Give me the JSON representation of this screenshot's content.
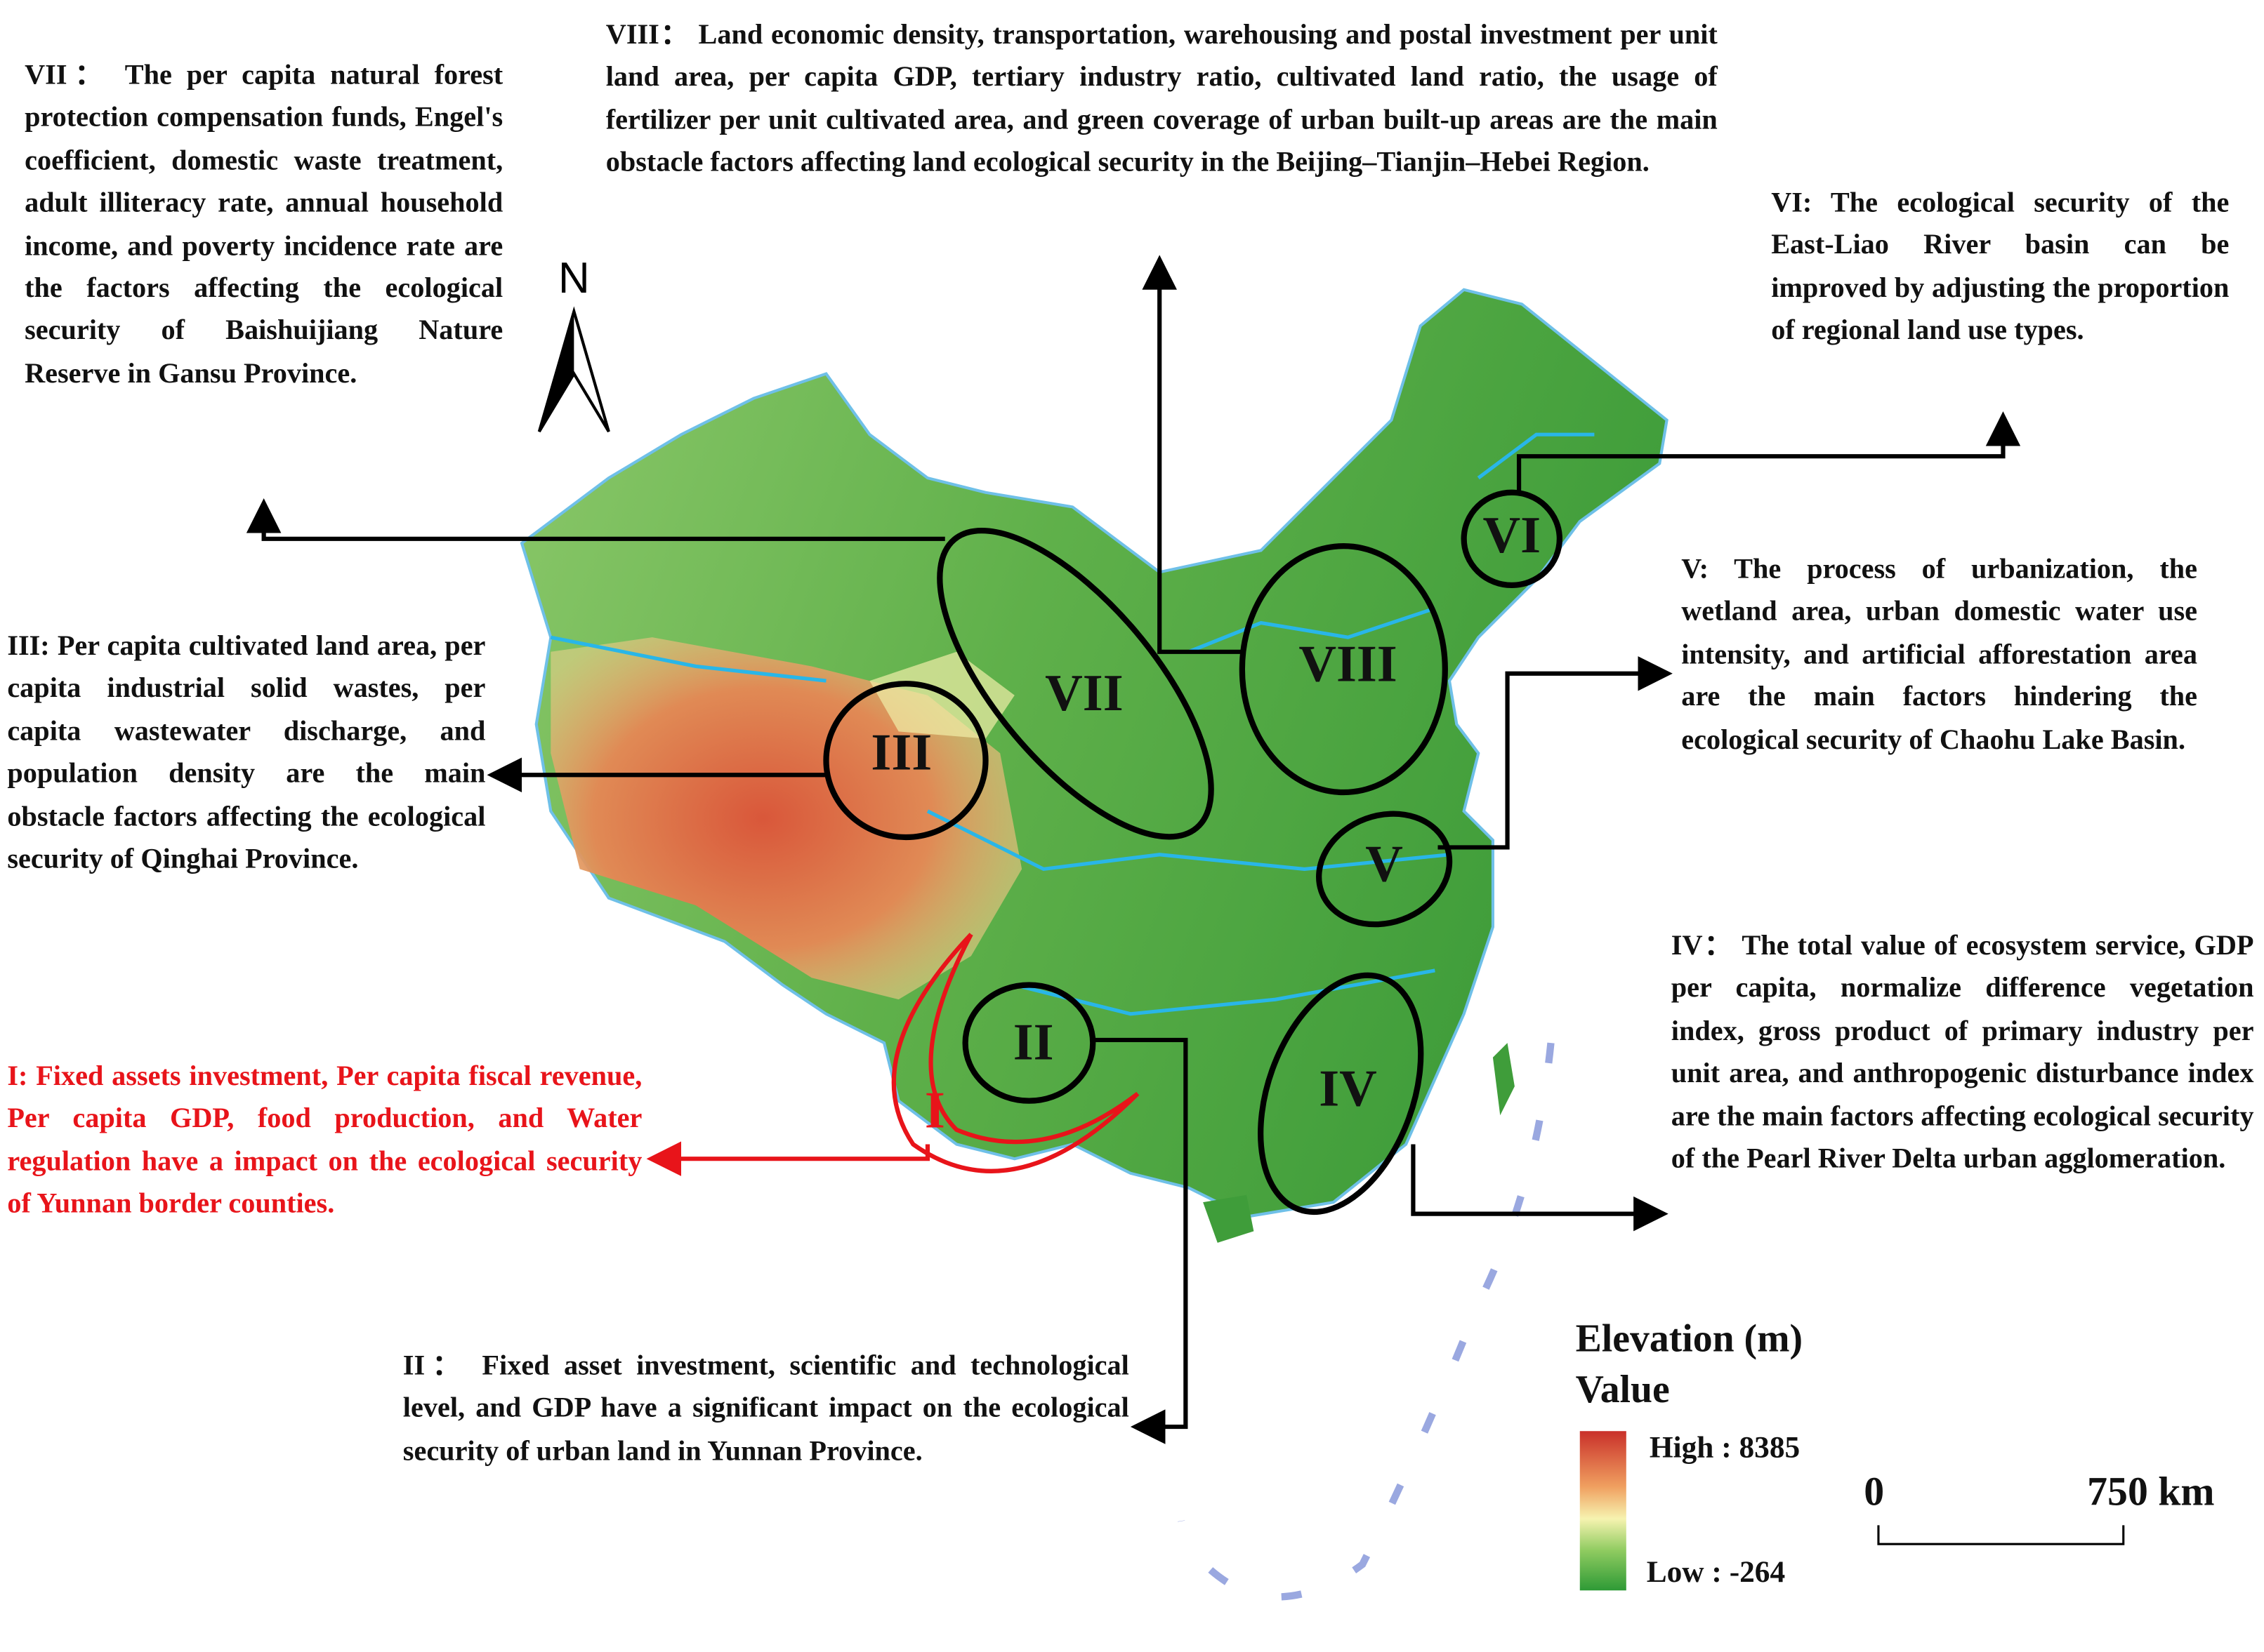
{
  "north": "N",
  "annotations": {
    "vii": "VII： The per capita natural forest protection compensation funds, Engel's coefficient, domestic waste treatment, adult illiteracy rate, annual household income, and poverty incidence rate are the factors affecting the ecological security of Baishuijiang Nature Reserve in Gansu Province.",
    "viii": "VIII： Land economic density, transportation, warehousing and postal investment per unit land area, per capita GDP, tertiary industry ratio, cultivated land ratio, the usage of fertilizer per unit cultivated area, and green coverage of urban built-up areas are the main obstacle factors affecting land ecological security in the Beijing–Tianjin–Hebei Region.",
    "vi": "VI: The ecological security of the East-Liao River basin can be improved by adjusting the proportion of regional land use types.",
    "v": "V: The process of urbanization, the wetland area, urban domestic water use intensity, and artificial afforestation area are the main factors hindering the ecological security of Chaohu Lake Basin.",
    "iii": "III: Per capita cultivated land area, per capita industrial solid wastes, per capita wastewater discharge, and population density are the main obstacle factors affecting the ecological security of Qinghai Province.",
    "i": "I: Fixed assets investment, Per capita fiscal revenue, Per capita GDP, food production, and Water regulation have a impact on the ecological security of Yunnan border counties.",
    "iv": "IV： The total value of ecosystem service, GDP per capita, normalize difference vegetation index, gross product of primary industry per unit area, and anthropogenic disturbance index are the main factors affecting ecological security of the Pearl River Delta urban agglomeration.",
    "ii": "II： Fixed asset investment, scientific and technological level, and GDP have a significant impact on the ecological security of urban land in Yunnan Province."
  },
  "region_labels": [
    "I",
    "II",
    "III",
    "IV",
    "V",
    "VI",
    "VII",
    "VIII"
  ],
  "legend": {
    "title": "Elevation (m)",
    "subtitle": "Value",
    "high": "High : 8385",
    "low": "Low : -264"
  },
  "scale_bar": {
    "start": "0",
    "end": "750 km"
  }
}
